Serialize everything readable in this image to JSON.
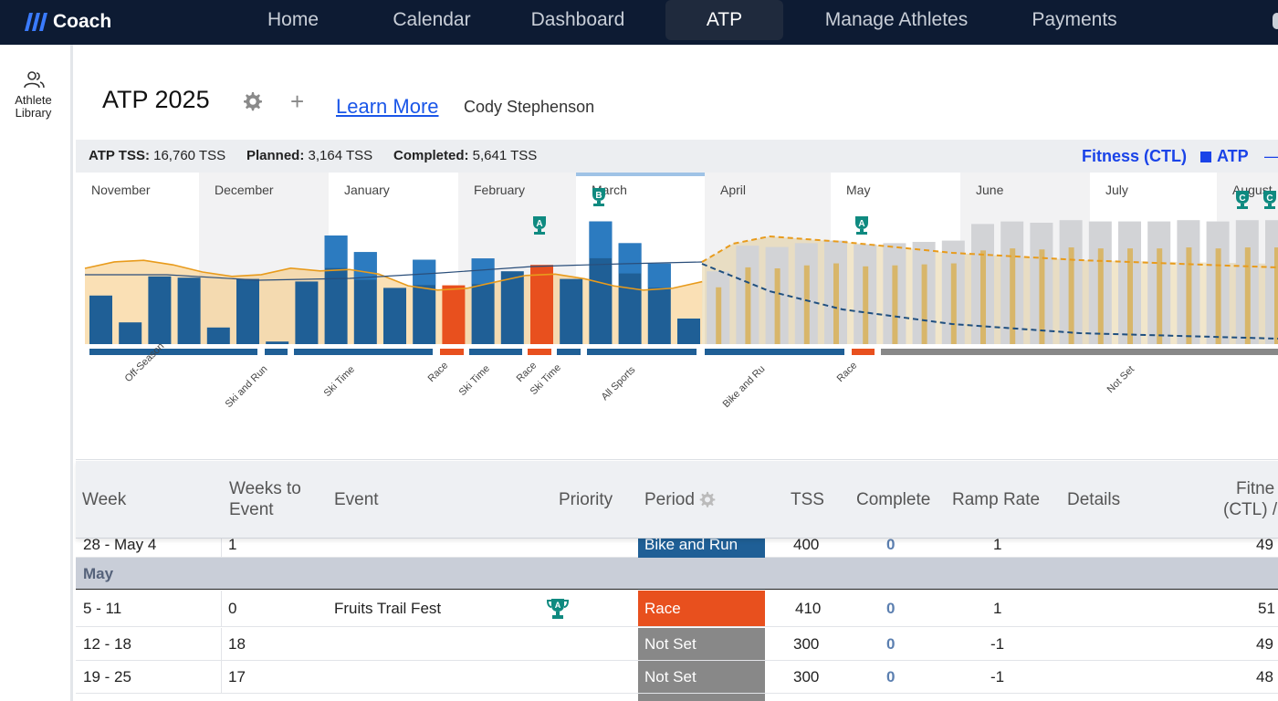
{
  "app": {
    "name": "Coach"
  },
  "nav": {
    "items": [
      {
        "label": "Home"
      },
      {
        "label": "Calendar"
      },
      {
        "label": "Dashboard"
      },
      {
        "label": "ATP",
        "active": true
      },
      {
        "label": "Manage Athletes"
      },
      {
        "label": "Payments"
      }
    ]
  },
  "sidebar": {
    "items": [
      {
        "label_line1": "Athlete",
        "label_line2": "Library",
        "icon": "users-icon"
      }
    ]
  },
  "header": {
    "title": "ATP 2025",
    "learn_more": "Learn More",
    "athlete": "Cody Stephenson"
  },
  "stats": {
    "atp_label": "ATP TSS:",
    "atp_value": "16,760 TSS",
    "planned_label": "Planned:",
    "planned_value": "3,164 TSS",
    "completed_label": "Completed:",
    "completed_value": "5,641 TSS"
  },
  "legend": {
    "fitness": "Fitness (CTL)",
    "atp": "ATP",
    "dash": "—"
  },
  "colors": {
    "completed": "#1f5f96",
    "completed_top": "#2c7bc0",
    "race": "#e8501e",
    "planned": "#d2d3d6",
    "fitness_area": "#f5c678",
    "fitness_line": "#e89b1c",
    "ctl_dash": "#1f4f7f",
    "gold": "#d8b66a",
    "not_set": "#888888",
    "badge": "#0f8a80"
  },
  "chart_data": {
    "type": "bar",
    "months": [
      "November",
      "December",
      "January",
      "February",
      "March",
      "April",
      "May",
      "June",
      "July",
      "August"
    ],
    "races": [
      {
        "label": "A",
        "priority": "A"
      },
      {
        "label": "B",
        "priority": "B"
      },
      {
        "label": "A",
        "priority": "A"
      },
      {
        "label": "C",
        "priority": "C"
      },
      {
        "label": "C",
        "priority": "C"
      }
    ],
    "periods": [
      {
        "label": "Off-Season",
        "color": "#1f5f96"
      },
      {
        "label": "Ski and Run",
        "color": "#1f5f96"
      },
      {
        "label": "Ski Time",
        "color": "#1f5f96"
      },
      {
        "label": "Race",
        "color": "#e8501e"
      },
      {
        "label": "Ski Time",
        "color": "#1f5f96"
      },
      {
        "label": "Race",
        "color": "#e8501e"
      },
      {
        "label": "Ski Time",
        "color": "#1f5f96"
      },
      {
        "label": "All Sports",
        "color": "#1f5f96"
      },
      {
        "label": "Bike and Ru",
        "color": "#1f5f96"
      },
      {
        "label": "Race",
        "color": "#e8501e"
      },
      {
        "label": "Not Set",
        "color": "#888888"
      }
    ],
    "weekly_bars": [
      {
        "completed": 0.38,
        "kind": "completed"
      },
      {
        "completed": 0.17,
        "kind": "completed"
      },
      {
        "completed": 0.53,
        "kind": "completed"
      },
      {
        "completed": 0.52,
        "kind": "completed"
      },
      {
        "completed": 0.13,
        "kind": "completed"
      },
      {
        "completed": 0.51,
        "kind": "completed"
      },
      {
        "completed": 0.02,
        "kind": "completed"
      },
      {
        "completed": 0.49,
        "kind": "completed"
      },
      {
        "completed": 0.85,
        "kind": "completed"
      },
      {
        "completed": 0.72,
        "kind": "completed"
      },
      {
        "completed": 0.44,
        "kind": "completed"
      },
      {
        "completed": 0.66,
        "kind": "completed"
      },
      {
        "completed": 0.46,
        "kind": "race"
      },
      {
        "completed": 0.67,
        "kind": "completed"
      },
      {
        "completed": 0.57,
        "kind": "completed"
      },
      {
        "completed": 0.62,
        "kind": "race"
      },
      {
        "completed": 0.51,
        "kind": "completed"
      },
      {
        "completed": 0.96,
        "kind": "completed"
      },
      {
        "completed": 0.79,
        "kind": "completed"
      },
      {
        "completed": 0.63,
        "kind": "completed"
      },
      {
        "completed": 0.2,
        "kind": "completed"
      },
      {
        "planned": 0.57,
        "kind": "planned"
      },
      {
        "planned": 0.77,
        "kind": "planned"
      },
      {
        "planned": 0.76,
        "kind": "planned"
      },
      {
        "planned": 0.79,
        "kind": "planned"
      },
      {
        "planned": 0.81,
        "kind": "planned"
      },
      {
        "planned": 0.78,
        "kind": "planned"
      },
      {
        "planned": 0.79,
        "kind": "planned"
      },
      {
        "planned": 0.8,
        "kind": "planned"
      },
      {
        "planned": 0.81,
        "kind": "planned"
      },
      {
        "planned": 0.94,
        "kind": "planned"
      },
      {
        "planned": 0.96,
        "kind": "planned"
      },
      {
        "planned": 0.95,
        "kind": "planned"
      },
      {
        "planned": 0.97,
        "kind": "planned"
      },
      {
        "planned": 0.96,
        "kind": "planned"
      },
      {
        "planned": 0.96,
        "kind": "planned"
      },
      {
        "planned": 0.96,
        "kind": "planned"
      },
      {
        "planned": 0.97,
        "kind": "planned"
      },
      {
        "planned": 0.96,
        "kind": "planned"
      },
      {
        "planned": 0.97,
        "kind": "planned"
      },
      {
        "planned": 0.97,
        "kind": "planned"
      }
    ]
  },
  "table": {
    "headers": {
      "week": "Week",
      "weeks_to_event_1": "Weeks to",
      "weeks_to_event_2": "Event",
      "event": "Event",
      "priority": "Priority",
      "period": "Period",
      "tss": "TSS",
      "complete": "Complete",
      "ramp": "Ramp Rate",
      "details": "Details",
      "fitness_1": "Fitne",
      "fitness_2": "(CTL) /"
    },
    "partial_row": {
      "week": "28 - May 4",
      "weeks_to_event": "1",
      "period": "Bike and Run",
      "period_color": "#1f5f96",
      "tss": "400",
      "complete": "0",
      "ramp": "1",
      "fitness": "49"
    },
    "month_label": "May",
    "rows": [
      {
        "week": "5 - 11",
        "weeks_to_event": "0",
        "event": "Fruits Trail Fest",
        "priority": "A",
        "period": "Race",
        "period_color": "#e8501e",
        "tss": "410",
        "complete": "0",
        "ramp": "1",
        "fitness": "51"
      },
      {
        "week": "12 - 18",
        "weeks_to_event": "18",
        "event": "",
        "priority": "",
        "period": "Not Set",
        "period_color": "#888888",
        "tss": "300",
        "complete": "0",
        "ramp": "-1",
        "fitness": "49"
      },
      {
        "week": "19 - 25",
        "weeks_to_event": "17",
        "event": "",
        "priority": "",
        "period": "Not Set",
        "period_color": "#888888",
        "tss": "300",
        "complete": "0",
        "ramp": "-1",
        "fitness": "48"
      }
    ]
  }
}
